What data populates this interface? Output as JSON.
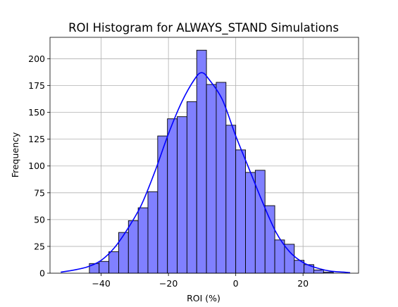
{
  "chart_data": {
    "type": "bar",
    "title": "ROI Histogram for ALWAYS_STAND Simulations",
    "xlabel": "ROI (%)",
    "ylabel": "Frequency",
    "xlim": [
      -55.2,
      36.5
    ],
    "ylim": [
      0,
      220
    ],
    "xticks": [
      -40,
      -20,
      0,
      20
    ],
    "yticks": [
      0,
      25,
      50,
      75,
      100,
      125,
      150,
      175,
      200
    ],
    "grid": true,
    "bar_color": "#8080ff",
    "bar_edge_color": "#000000",
    "kde_color": "#0000ff",
    "bins": {
      "start": -43.5,
      "width": 2.9,
      "counts": [
        9,
        11,
        20,
        38,
        49,
        61,
        76,
        128,
        144,
        146,
        160,
        208,
        176,
        178,
        138,
        115,
        94,
        96,
        63,
        31,
        27,
        12,
        8,
        3,
        1
      ]
    },
    "kde": {
      "x": [
        -52,
        -48,
        -44,
        -40,
        -36,
        -32,
        -28,
        -24,
        -20,
        -16,
        -12,
        -10,
        -8,
        -4,
        0,
        4,
        8,
        12,
        16,
        20,
        24,
        28,
        32,
        34
      ],
      "y": [
        1,
        3,
        6,
        12,
        24,
        42,
        64,
        95,
        130,
        160,
        182,
        187,
        181,
        162,
        128,
        97,
        66,
        38,
        20,
        10,
        5,
        2,
        1,
        0.5
      ]
    }
  }
}
